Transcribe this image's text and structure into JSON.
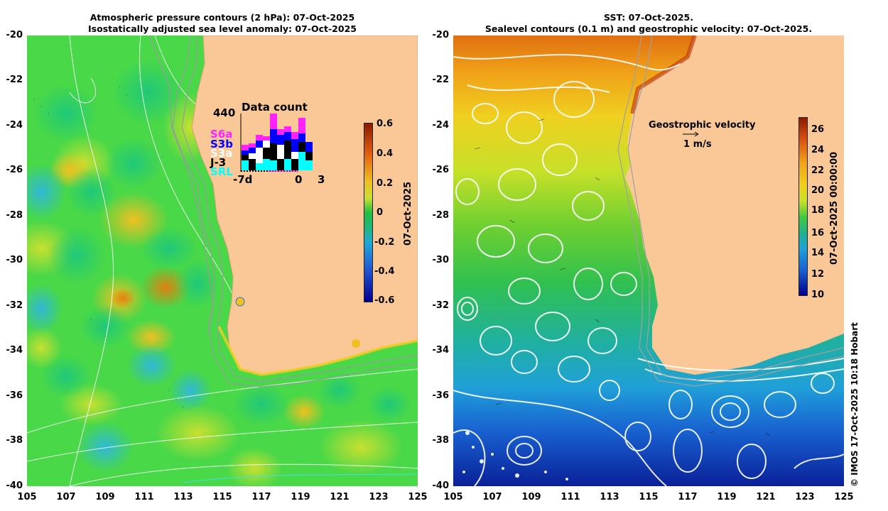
{
  "left": {
    "title_line1": "Atmospheric pressure contours (2 hPa): 07-Oct-2025",
    "title_line2": "Isostatically adjusted sea level anomaly: 07-Oct-2025",
    "colorbar": {
      "label": "07-Oct-2025",
      "ticks": [
        "0.6",
        "0.4",
        "0.2",
        "0",
        "-0.2",
        "-0.4",
        "-0.6"
      ]
    },
    "inset": {
      "title": "Data count",
      "max_label": "440",
      "x_start": "-7d",
      "x_mid": "0",
      "x_end": "3",
      "missions": [
        {
          "name": "S6a",
          "color": "#ff22ff"
        },
        {
          "name": "S3b",
          "color": "#0000ff"
        },
        {
          "name": "S3a",
          "color": "#ffffff"
        },
        {
          "name": "J-3",
          "color": "#000000"
        },
        {
          "name": "SRL",
          "color": "#00ffff"
        }
      ]
    }
  },
  "right": {
    "title_line1": "SST: 07-Oct-2025.",
    "title_line2": "Sealevel contours (0.1 m) and geostrophic velocity: 07-Oct-2025.",
    "colorbar": {
      "label": "07-Oct-2025 00:00:00",
      "ticks": [
        "26",
        "24",
        "22",
        "20",
        "18",
        "16",
        "14",
        "12",
        "10"
      ]
    },
    "velocity_label": "Geostrophic velocity",
    "velocity_scale": "1 m/s"
  },
  "axes": {
    "y_ticks": [
      "-20",
      "-22",
      "-24",
      "-26",
      "-28",
      "-30",
      "-32",
      "-34",
      "-36",
      "-38",
      "-40"
    ],
    "x_ticks": [
      "105",
      "107",
      "109",
      "111",
      "113",
      "115",
      "117",
      "119",
      "121",
      "123",
      "125"
    ]
  },
  "credit": "© IMOS 17-Oct-2025 10:18 Hobart",
  "colors": {
    "land": "#f9c896",
    "sla_positive": "#f0c020",
    "sla_neutral": "#40dd40",
    "sst_warm": "#f08a10",
    "sst_cold": "#1030b0"
  }
}
